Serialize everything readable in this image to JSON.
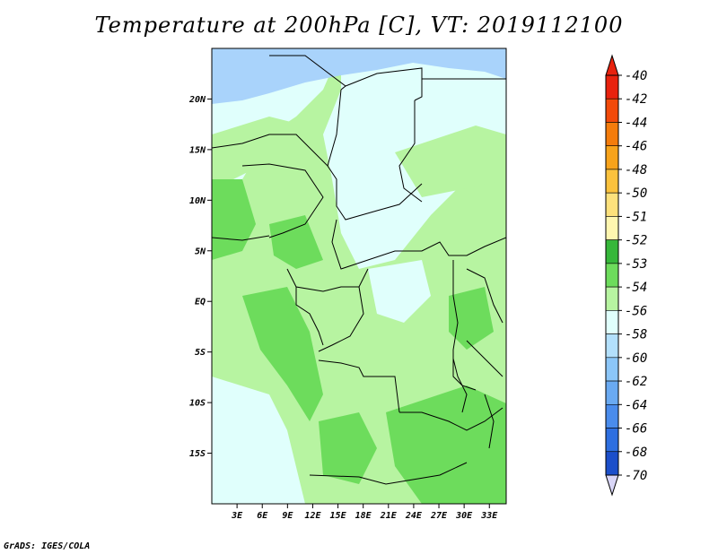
{
  "title": "Temperature at 200hPa [C], VT: 2019112100",
  "credit": "GrADS: IGES/COLA",
  "chart_data": {
    "type": "heatmap",
    "title": "Temperature at 200hPa [C], VT: 2019112100",
    "x_ticks": [
      "3E",
      "6E",
      "9E",
      "12E",
      "15E",
      "18E",
      "21E",
      "24E",
      "27E",
      "30E",
      "33E"
    ],
    "y_ticks": [
      "20N",
      "15N",
      "10N",
      "5N",
      "EQ",
      "5S",
      "10S",
      "15S"
    ],
    "xlim": [
      0,
      35
    ],
    "ylim": [
      -20,
      25
    ],
    "grid": false,
    "legend_placement": "right",
    "colorbar": [
      {
        "label": "-40",
        "color": "#e8220e"
      },
      {
        "label": "-42",
        "color": "#f24a0a"
      },
      {
        "label": "-44",
        "color": "#f47c0c"
      },
      {
        "label": "-46",
        "color": "#f7a31b"
      },
      {
        "label": "-48",
        "color": "#fbc23d"
      },
      {
        "label": "-50",
        "color": "#fde17c"
      },
      {
        "label": "-51",
        "color": "#fff6b0"
      },
      {
        "label": "-52",
        "color": "#36b73a"
      },
      {
        "label": "-53",
        "color": "#6ddc5c"
      },
      {
        "label": "-54",
        "color": "#b7f4a1"
      },
      {
        "label": "-56",
        "color": "#e0fffc"
      },
      {
        "label": "-58",
        "color": "#b3e0fc"
      },
      {
        "label": "-60",
        "color": "#8cc6f8"
      },
      {
        "label": "-62",
        "color": "#6aaaf2"
      },
      {
        "label": "-64",
        "color": "#4a8cec"
      },
      {
        "label": "-66",
        "color": "#2e6fe0"
      },
      {
        "label": "-68",
        "color": "#1c4fca"
      },
      {
        "label": "-70",
        "color": "#0b2a9e"
      }
    ],
    "colorbar_extend_top": "#e8220e",
    "colorbar_extend_bottom": "#d9d6f7",
    "colors": {
      "lt_blue": "#a9d3fb",
      "pale_cyan": "#e0fffc",
      "lt_green": "#b7f4a1",
      "mid_green": "#6ddc5c"
    }
  }
}
